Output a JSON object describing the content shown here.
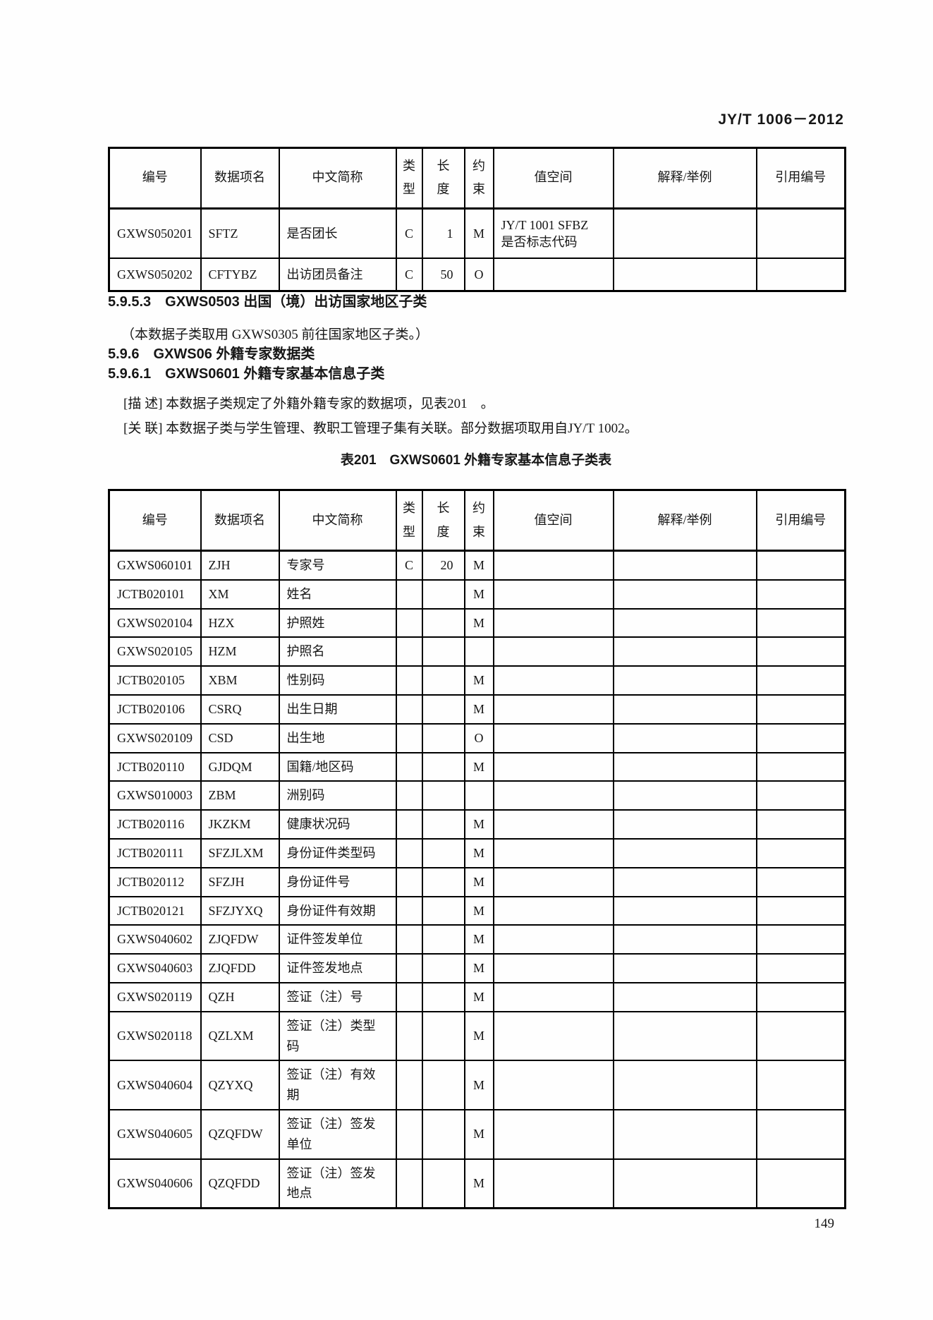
{
  "page": {
    "doc_code": "JY/T 1006－2012",
    "page_number": "149"
  },
  "columns": [
    "编号",
    "数据项名",
    "中文简称",
    "类型",
    "长度",
    "约束",
    "值空间",
    "解释/举例",
    "引用编号"
  ],
  "table_top": {
    "rows": [
      [
        "GXWS050201",
        "SFTZ",
        "是否团长",
        "C",
        "1",
        "M",
        "JY/T 1001 SFBZ\n是否标志代码",
        "",
        ""
      ],
      [
        "GXWS050202",
        "CFTYBZ",
        "出访团员备注",
        "C",
        "50",
        "O",
        "",
        "",
        ""
      ]
    ]
  },
  "sections": {
    "h_5953": "5.9.5.3　GXWS0503 出国（境）出访国家地区子类",
    "p_note": "（本数据子类取用 GXWS0305 前往国家地区子类。）",
    "h_596": "5.9.6　GXWS06 外籍专家数据类",
    "h_5961": "5.9.6.1　GXWS0601 外籍专家基本信息子类",
    "p_desc": "[描 述] 本数据子类规定了外籍外籍专家的数据项，见表201　。",
    "p_rel": "[关 联] 本数据子类与学生管理、教职工管理子集有关联。部分数据项取用自JY/T 1002。",
    "caption": "表201　GXWS0601 外籍专家基本信息子类表"
  },
  "table201": {
    "rows": [
      [
        "GXWS060101",
        "ZJH",
        "专家号",
        "C",
        "20",
        "M",
        "",
        "",
        ""
      ],
      [
        "JCTB020101",
        "XM",
        "姓名",
        "",
        "",
        "M",
        "",
        "",
        ""
      ],
      [
        "GXWS020104",
        "HZX",
        "护照姓",
        "",
        "",
        "M",
        "",
        "",
        ""
      ],
      [
        "GXWS020105",
        "HZM",
        "护照名",
        "",
        "",
        "",
        "",
        "",
        ""
      ],
      [
        "JCTB020105",
        "XBM",
        "性别码",
        "",
        "",
        "M",
        "",
        "",
        ""
      ],
      [
        "JCTB020106",
        "CSRQ",
        "出生日期",
        "",
        "",
        "M",
        "",
        "",
        ""
      ],
      [
        "GXWS020109",
        "CSD",
        "出生地",
        "",
        "",
        "O",
        "",
        "",
        ""
      ],
      [
        "JCTB020110",
        "GJDQM",
        "国籍/地区码",
        "",
        "",
        "M",
        "",
        "",
        ""
      ],
      [
        "GXWS010003",
        "ZBM",
        "洲别码",
        "",
        "",
        "",
        "",
        "",
        ""
      ],
      [
        "JCTB020116",
        "JKZKM",
        "健康状况码",
        "",
        "",
        "M",
        "",
        "",
        ""
      ],
      [
        "JCTB020111",
        "SFZJLXM",
        "身份证件类型码",
        "",
        "",
        "M",
        "",
        "",
        ""
      ],
      [
        "JCTB020112",
        "SFZJH",
        "身份证件号",
        "",
        "",
        "M",
        "",
        "",
        ""
      ],
      [
        "JCTB020121",
        "SFZJYXQ",
        "身份证件有效期",
        "",
        "",
        "M",
        "",
        "",
        ""
      ],
      [
        "GXWS040602",
        "ZJQFDW",
        "证件签发单位",
        "",
        "",
        "M",
        "",
        "",
        ""
      ],
      [
        "GXWS040603",
        "ZJQFDD",
        "证件签发地点",
        "",
        "",
        "M",
        "",
        "",
        ""
      ],
      [
        "GXWS020119",
        "QZH",
        "签证（注）号",
        "",
        "",
        "M",
        "",
        "",
        ""
      ],
      [
        "GXWS020118",
        "QZLXM",
        "签证（注）类型\n码",
        "",
        "",
        "M",
        "",
        "",
        ""
      ],
      [
        "GXWS040604",
        "QZYXQ",
        "签证（注）有效\n期",
        "",
        "",
        "M",
        "",
        "",
        ""
      ],
      [
        "GXWS040605",
        "QZQFDW",
        "签证（注）签发\n单位",
        "",
        "",
        "M",
        "",
        "",
        ""
      ],
      [
        "GXWS040606",
        "QZQFDD",
        "签证（注）签发\n地点",
        "",
        "",
        "M",
        "",
        "",
        ""
      ]
    ]
  }
}
